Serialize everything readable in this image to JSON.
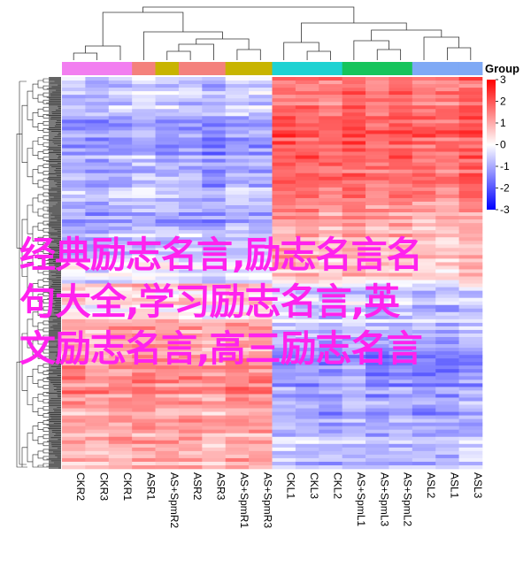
{
  "chart_data": {
    "type": "heatmap",
    "title": "",
    "columns": [
      "CKR2",
      "CKR3",
      "CKR1",
      "ASR1",
      "AS+SpmR2",
      "ASR2",
      "ASR3",
      "AS+SpmR1",
      "AS+SpmR3",
      "CKL1",
      "CKL3",
      "CKL2",
      "AS+SpmL1",
      "AS+SpmL3",
      "AS+SpmL2",
      "ASL2",
      "ASL1",
      "ASL3"
    ],
    "column_groups": [
      "CKR",
      "CKR",
      "CKR",
      "ASR",
      "AS+SpmR",
      "ASR",
      "ASR",
      "AS+SpmR",
      "AS+SpmR",
      "CKL",
      "CKL",
      "CKL",
      "AS+SpmL",
      "AS+SpmL",
      "AS+SpmL",
      "ASL",
      "ASL",
      "ASL"
    ],
    "group_colors": {
      "CKR": "#f27ef0",
      "ASR": "#f4817c",
      "AS+SpmR": "#c8b400",
      "CKL": "#1ed2d2",
      "AS+SpmL": "#16c45c",
      "ASL": "#7fa9f5"
    },
    "row_bands": [
      {
        "weight": 10,
        "left": -0.8,
        "right": 1.5
      },
      {
        "weight": 10,
        "left": -1.2,
        "right": 2.0
      },
      {
        "weight": 8,
        "left": -1.0,
        "right": 1.8
      },
      {
        "weight": 10,
        "left": -0.9,
        "right": 1.3
      },
      {
        "weight": 8,
        "left": -0.6,
        "right": 1.0
      },
      {
        "weight": 6,
        "left": -0.3,
        "right": 0.5
      },
      {
        "weight": 10,
        "left": 0.4,
        "right": -0.5
      },
      {
        "weight": 8,
        "left": 0.9,
        "right": -1.0
      },
      {
        "weight": 10,
        "left": 1.3,
        "right": -1.3
      },
      {
        "weight": 10,
        "left": 1.0,
        "right": -1.1
      },
      {
        "weight": 10,
        "left": 0.8,
        "right": -0.8
      }
    ],
    "legend": {
      "title": "Group",
      "ticks": [
        3,
        2,
        1,
        0,
        -1,
        -2,
        -3
      ],
      "range": [
        -3,
        3
      ],
      "low_color": "#0000ff",
      "mid_color": "#ffffff",
      "high_color": "#ff0000"
    }
  },
  "overlay_text": [
    "经典励志名言,励志名言名",
    "句大全,学习励志名言,英",
    "文励志名言,高三励志名言"
  ]
}
